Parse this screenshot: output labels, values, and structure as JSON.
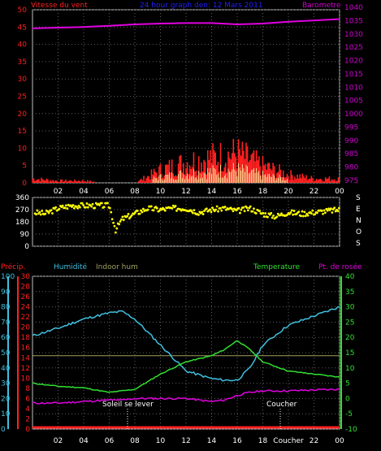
{
  "top_panel": {
    "title": "24 hour graph den: 12 Mars 2011",
    "left_label": "Vitesse du vent",
    "right_label": "Barometre",
    "colors": {
      "title": "#2020ff",
      "wind": "#ff2020",
      "gust": "#ffffaa",
      "baro": "#e000e0",
      "right_axis": "#d000d0"
    },
    "left_ticks": [
      "0",
      "5",
      "10",
      "15",
      "20",
      "25",
      "30",
      "35",
      "40",
      "45",
      "50"
    ],
    "right_ticks": [
      "975",
      "980",
      "985",
      "990",
      "995",
      "1000",
      "1005",
      "1010",
      "1015",
      "1020",
      "1025",
      "1030",
      "1035",
      "1040"
    ],
    "x_ticks": [
      "02",
      "04",
      "06",
      "08",
      "10",
      "12",
      "14",
      "16",
      "18",
      "20",
      "22",
      "00"
    ]
  },
  "dir_panel": {
    "left_ticks": [
      "0",
      "90",
      "180",
      "270",
      "360"
    ],
    "right_letters": [
      "S",
      "E",
      "N",
      "O",
      "S"
    ],
    "color": "#ffff00"
  },
  "bottom_panel": {
    "labels": {
      "precip": "Précip.",
      "humidity": "Humidité",
      "indoor": "Indoor hum",
      "temperature": "Temperature",
      "dew": "Pt. de rosée"
    },
    "colors": {
      "precip": "#ff2020",
      "humidity": "#40c0e0",
      "indoor": "#a0a060",
      "temperature": "#30e030",
      "dew": "#e000e0"
    },
    "humidity_ticks": [
      "0",
      "10",
      "20",
      "30",
      "40",
      "50",
      "60",
      "70",
      "80",
      "90",
      "100"
    ],
    "precip_ticks": [
      "0",
      "2",
      "4",
      "6",
      "8",
      "10",
      "12",
      "14",
      "16",
      "18",
      "20",
      "22",
      "24",
      "26",
      "28",
      "30"
    ],
    "temp_ticks": [
      "-10",
      "-5",
      "0",
      "5",
      "10",
      "15",
      "20",
      "25",
      "30",
      "35",
      "40"
    ],
    "x_ticks": [
      "02",
      "04",
      "06",
      "08",
      "10",
      "12",
      "14",
      "16",
      "18",
      "Coucher",
      "22",
      "00"
    ],
    "sunrise_label": "Soleil se lever",
    "sunset_label": "Coucher"
  },
  "chart_data": [
    {
      "type": "line",
      "title": "24 hour graph den: 12 Mars 2011",
      "x_hours": [
        0,
        2,
        4,
        6,
        8,
        10,
        12,
        14,
        16,
        18,
        20,
        22,
        24
      ],
      "series": [
        {
          "name": "Barometre",
          "axis": "right",
          "values": [
            1033,
            1033.3,
            1033.5,
            1034,
            1034.5,
            1034.8,
            1035,
            1035,
            1034.5,
            1034.8,
            1035.5,
            1036,
            1036.5
          ]
        },
        {
          "name": "Vitesse du vent",
          "axis": "left",
          "values": [
            1,
            0.5,
            0.5,
            0,
            0,
            3,
            5,
            6,
            7,
            4,
            2,
            1,
            1
          ]
        }
      ],
      "ylim_left": [
        0,
        50
      ],
      "ylim_right": [
        975,
        1040
      ]
    },
    {
      "type": "scatter",
      "x_hours": [
        0,
        1,
        2,
        3,
        4,
        5,
        6,
        6.5,
        7,
        8,
        9,
        10,
        11,
        12,
        13,
        14,
        15,
        16,
        17,
        18,
        19,
        20,
        21,
        22,
        23,
        24
      ],
      "values": [
        250,
        240,
        280,
        300,
        300,
        300,
        300,
        120,
        200,
        240,
        280,
        270,
        280,
        280,
        250,
        270,
        280,
        260,
        280,
        240,
        220,
        250,
        240,
        250,
        260,
        270
      ],
      "ylim": [
        0,
        360
      ]
    },
    {
      "type": "line",
      "x_hours": [
        0,
        2,
        4,
        6,
        7,
        8,
        10,
        12,
        14,
        15,
        16,
        17,
        18,
        20,
        22,
        24
      ],
      "series": [
        {
          "name": "Humidité",
          "values": [
            61,
            66,
            72,
            76,
            77,
            72,
            55,
            38,
            33,
            32,
            32,
            40,
            55,
            68,
            74,
            80
          ]
        },
        {
          "name": "Indoor hum",
          "values": [
            48,
            48,
            48,
            48,
            48,
            48,
            48,
            48,
            48,
            48,
            48,
            48,
            48,
            48,
            48,
            48
          ]
        },
        {
          "name": "Temperature",
          "values": [
            5,
            4,
            3.5,
            2,
            2.5,
            3,
            8,
            12,
            14,
            16,
            19,
            16,
            12,
            9,
            8,
            7
          ]
        },
        {
          "name": "Pt. de rosée",
          "values": [
            -1.5,
            -1.5,
            -1,
            -0.5,
            -0.5,
            0,
            0,
            0,
            -1,
            -0.5,
            1,
            2,
            2.5,
            2.5,
            2.8,
            3
          ]
        },
        {
          "name": "Précip.",
          "values": [
            0,
            0,
            0,
            0,
            0,
            0,
            0,
            0,
            0,
            0,
            0,
            0,
            0,
            0,
            0,
            0
          ]
        }
      ],
      "ylim_humidity": [
        0,
        100
      ],
      "ylim_temp": [
        -10,
        40
      ]
    }
  ]
}
